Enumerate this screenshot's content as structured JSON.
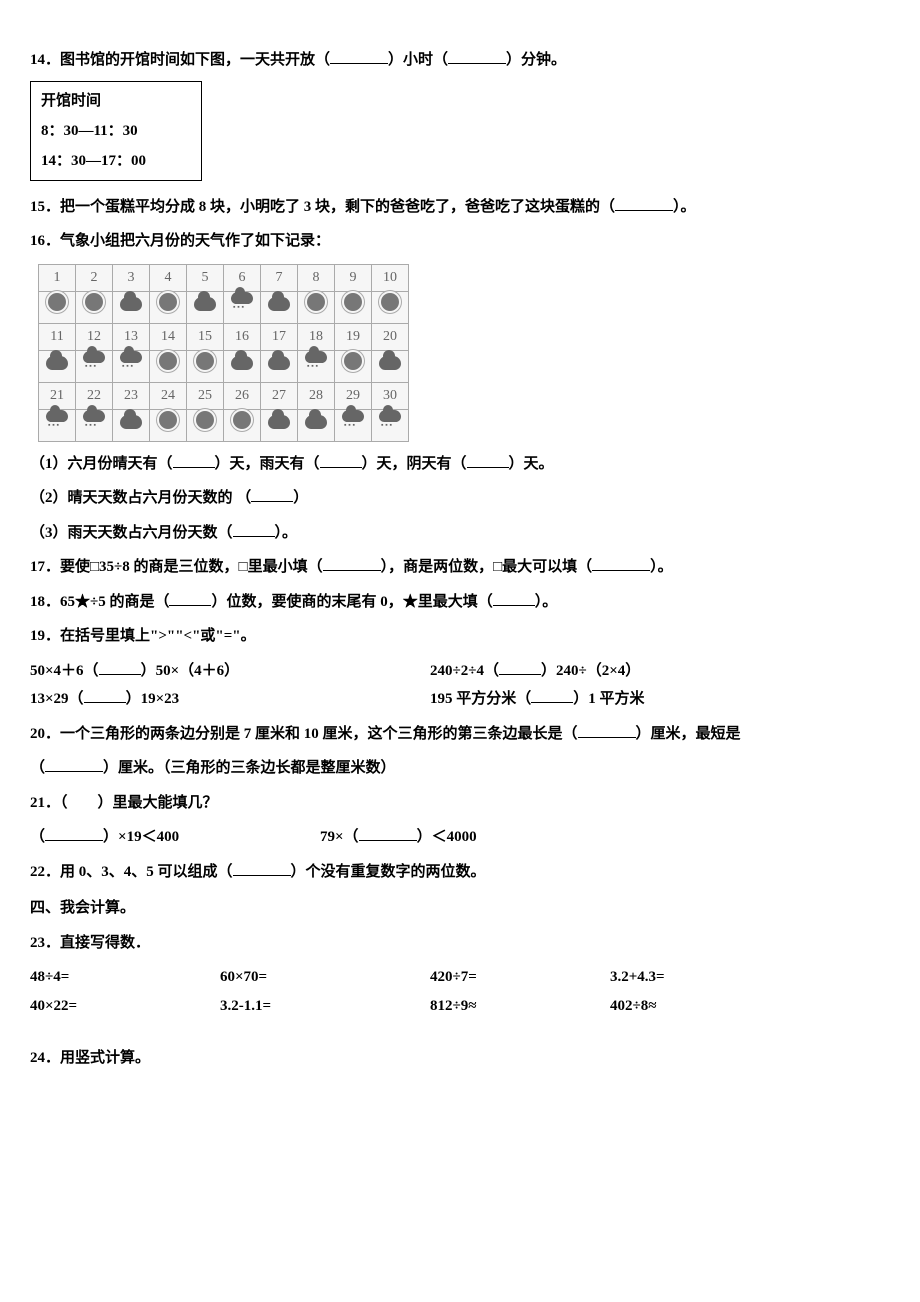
{
  "q14": {
    "text_a": "14．图书馆的开馆时间如下图，一天共开放（",
    "text_b": "）小时（",
    "text_c": "）分钟。",
    "box_title": "开馆时间",
    "box_line1": "8：30—11：30",
    "box_line2": "14：30—17：00"
  },
  "q15": {
    "text_a": "15．把一个蛋糕平均分成 8 块，小明吃了 3 块，剩下的爸爸吃了，爸爸吃了这块蛋糕的（",
    "text_b": "）。"
  },
  "q16": {
    "intro": "16．气象小组把六月份的天气作了如下记录：",
    "calendar": {
      "days": 30,
      "weather": [
        "sun",
        "sun",
        "cloud",
        "sun",
        "cloud",
        "rain",
        "cloud",
        "sun",
        "sun",
        "sun",
        "cloud",
        "rain",
        "rain",
        "sun",
        "sun",
        "cloud",
        "cloud",
        "rain",
        "sun",
        "cloud",
        "rain",
        "rain",
        "cloud",
        "sun",
        "sun",
        "sun",
        "cloud",
        "cloud",
        "rain",
        "rain"
      ]
    },
    "p1_a": "（1）六月份晴天有（",
    "p1_b": "）天，雨天有（",
    "p1_c": "）天，阴天有（",
    "p1_d": "）天。",
    "p2_a": "（2）晴天天数占六月份天数的 （",
    "p2_b": "）",
    "p3_a": "（3）雨天天数占六月份天数（",
    "p3_b": "）。"
  },
  "q17": {
    "a": "17．要使□35÷8 的商是三位数，□里最小填（",
    "b": "），商是两位数，□最大可以填（",
    "c": "）。"
  },
  "q18": {
    "a": "18．65★÷5 的商是（",
    "b": "）位数，要使商的末尾有 0，★里最大填（",
    "c": "）。"
  },
  "q19": {
    "intro": "19．在括号里填上\">\"\"<\"或\"=\"。",
    "r1a_a": "50×4＋6（",
    "r1a_b": "）50×（4＋6）",
    "r1b_a": "240÷2÷4（",
    "r1b_b": "）240÷（2×4）",
    "r2a_a": "13×29（",
    "r2a_b": "）19×23",
    "r2b_a": "195 平方分米（",
    "r2b_b": "）1 平方米"
  },
  "q20": {
    "a": "20．一个三角形的两条边分别是 7 厘米和 10 厘米，这个三角形的第三条边最长是（",
    "b": "）厘米，最短是",
    "c": "（",
    "d": "）厘米。（三角形的三条边长都是整厘米数）"
  },
  "q21": {
    "intro": "21．（　　）里最大能填几？",
    "a": "（",
    "b": "）×19＜400",
    "c": "79×（",
    "d": "）＜4000"
  },
  "q22": {
    "a": "22．用 0、3、4、5 可以组成（",
    "b": "）个没有重复数字的两位数。"
  },
  "section4": "四、我会计算。",
  "q23": {
    "intro": "23．直接写得数．",
    "row1": [
      "48÷4=",
      "60×70=",
      "420÷7=",
      "3.2+4.3="
    ],
    "row2": [
      "40×22=",
      "3.2-1.1=",
      "812÷9≈",
      "402÷8≈"
    ]
  },
  "q24": "24．用竖式计算。"
}
